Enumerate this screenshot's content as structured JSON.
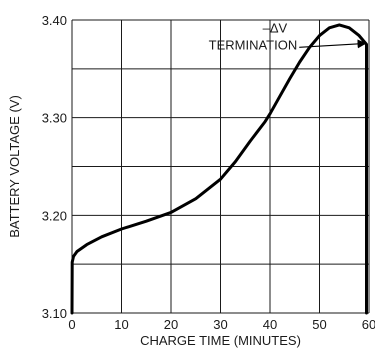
{
  "chart_data": {
    "type": "line",
    "xlabel": "CHARGE TIME (MINUTES)",
    "ylabel": "BATTERY VOLTAGE (V)",
    "xlim": [
      0,
      60
    ],
    "ylim": [
      3.1,
      3.4
    ],
    "grid": true,
    "x_ticks": [
      0,
      10,
      20,
      30,
      40,
      50,
      60
    ],
    "x_tick_labels": [
      "0",
      "10",
      "20",
      "30",
      "40",
      "50",
      "60"
    ],
    "y_ticks": [
      3.1,
      3.2,
      3.3,
      3.4
    ],
    "y_tick_labels": [
      "3.10",
      "3.20",
      "3.30",
      "3.40"
    ],
    "series": [
      {
        "x": [
          0,
          0.05,
          0.3,
          1,
          3,
          6,
          10,
          15,
          20,
          25,
          30,
          33,
          36,
          39,
          40,
          42,
          44,
          46,
          48,
          50,
          52,
          54,
          56,
          58,
          59.5,
          59.5
        ],
        "y": [
          3.1,
          3.152,
          3.158,
          3.163,
          3.17,
          3.178,
          3.186,
          3.194,
          3.203,
          3.217,
          3.237,
          3.255,
          3.276,
          3.296,
          3.304,
          3.322,
          3.34,
          3.357,
          3.372,
          3.384,
          3.392,
          3.395,
          3.392,
          3.384,
          3.375,
          3.1
        ]
      }
    ],
    "annotations": [
      {
        "lines": [
          "–ΔV",
          "TERMINATION"
        ],
        "x": 45.5,
        "y": 3.37,
        "arrow_to": [
          59.3,
          3.376
        ]
      }
    ],
    "colors": {
      "line": "#000000",
      "grid": "#1a1a1a",
      "text": "#1a1a1a"
    }
  }
}
